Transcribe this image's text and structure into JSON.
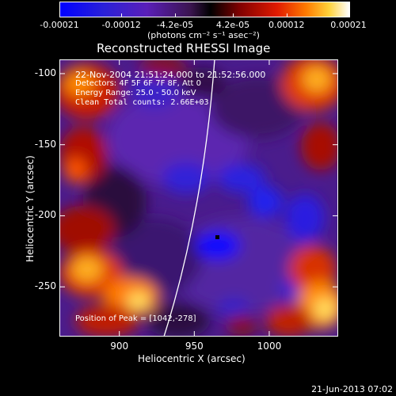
{
  "colorbar": {
    "tick_labels": [
      "-0.00021",
      "-0.00012",
      "-4.2e-05",
      "4.2e-05",
      "0.00012",
      "0.00021"
    ],
    "units_label": "(photons cm⁻² s⁻¹ asec⁻²)",
    "range": [
      -0.00021,
      0.00021
    ],
    "colors": [
      "#0000ff",
      "#3d1fbf",
      "#6a1fa0",
      "#3b1450",
      "#000000",
      "#7a0000",
      "#d81a00",
      "#ff6a00",
      "#ffd23a",
      "#ffffff"
    ]
  },
  "image": {
    "title": "Reconstructed RHESSI Image",
    "info_lines": [
      "22-Nov-2004 21:51:24.000 to 21:52:56.000",
      "Detectors: 4F 5F 6F 7F 8F, Att 0",
      "Energy Range: 25.0 - 50.0 keV",
      "Clean     Total counts: 2.66E+03"
    ],
    "peak_label": "Position of Peak = [1042,-278]",
    "x_axis": {
      "label": "Heliocentric X (arcsec)",
      "ticks": [
        "900",
        "950",
        "1000"
      ],
      "tick_values": [
        900,
        950,
        1000
      ],
      "range": [
        860,
        1046
      ]
    },
    "y_axis": {
      "label": "Heliocentric Y (arcsec)",
      "ticks": [
        "-100",
        "-150",
        "-200",
        "-250"
      ],
      "tick_values": [
        -100,
        -150,
        -200,
        -250
      ],
      "range": [
        -285,
        -90
      ]
    }
  },
  "footer": {
    "timestamp": "21-Jun-2013 07:02"
  }
}
